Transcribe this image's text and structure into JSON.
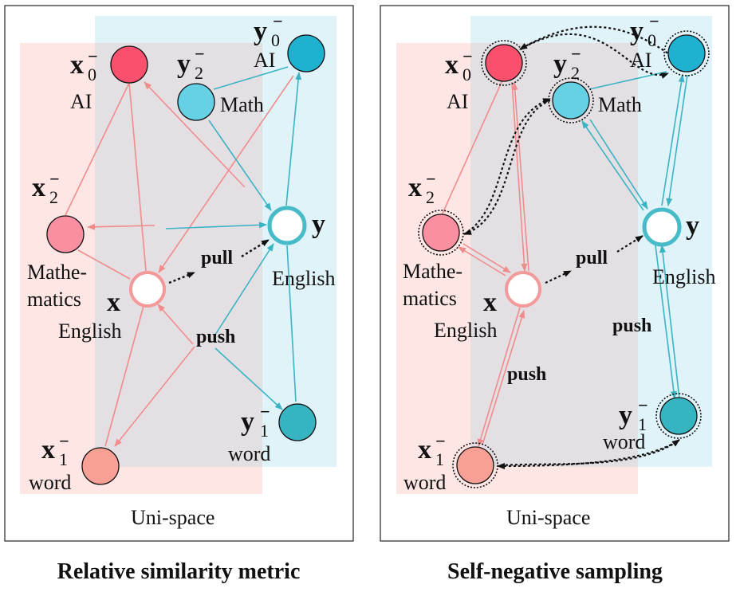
{
  "colors": {
    "source": "#f08c8c",
    "target": "#3ab4c4",
    "source_region": "#fde6e4",
    "target_region": "#dff3f8",
    "overlap_region": "#e4dfe3",
    "x_fill": "#ffffff",
    "x_stroke": "#f4999a",
    "y_stroke": "#47bcc8",
    "x0_fill": "#f9506e",
    "x1_fill": "#f9a096",
    "x2_fill": "#f98fa0",
    "y0_fill": "#1fb1d0",
    "y1_fill": "#37b4c1",
    "y2_fill": "#66d0e4"
  },
  "panels": [
    {
      "caption": "Relative similarity metric",
      "space_label": "Uni-space",
      "nodes": {
        "x": {
          "symbol": "x",
          "label": "English",
          "icon": "circle"
        },
        "y": {
          "symbol": "y",
          "label": "English",
          "icon": "circle"
        },
        "x0": {
          "symbol": "x",
          "sup": "−",
          "sub": "0",
          "label": "AI",
          "icon": "circle"
        },
        "x1": {
          "symbol": "x",
          "sup": "−",
          "sub": "1",
          "label": "word",
          "icon": "circle"
        },
        "x2": {
          "symbol": "x",
          "sup": "−",
          "sub": "2",
          "label_line1": "Mathe-",
          "label_line2": "matics",
          "icon": "circle"
        },
        "y0": {
          "symbol": "y",
          "sup": "−",
          "sub": "0",
          "label": "AI",
          "icon": "circle"
        },
        "y1": {
          "symbol": "y",
          "sup": "−",
          "sub": "1",
          "label": "word",
          "icon": "circle"
        },
        "y2": {
          "symbol": "y",
          "sup": "−",
          "sub": "2",
          "label": "Math",
          "icon": "circle"
        }
      },
      "pull_label": "pull",
      "push_label": "push"
    },
    {
      "caption": "Self-negative sampling",
      "space_label": "Uni-space",
      "nodes": {
        "x": {
          "symbol": "x",
          "label": "English",
          "icon": "circle"
        },
        "y": {
          "symbol": "y",
          "label": "English",
          "icon": "circle"
        },
        "x0": {
          "symbol": "x",
          "sup": "−",
          "sub": "0",
          "label": "AI",
          "icon": "dotted-ring-circle"
        },
        "x1": {
          "symbol": "x",
          "sup": "−",
          "sub": "1",
          "label": "word",
          "icon": "dotted-ring-circle"
        },
        "x2": {
          "symbol": "x",
          "sup": "−",
          "sub": "2",
          "label_line1": "Mathe-",
          "label_line2": "matics",
          "icon": "dotted-ring-circle"
        },
        "y0": {
          "symbol": "y",
          "sup": "−",
          "sub": "0",
          "label": "AI",
          "icon": "dotted-ring-circle"
        },
        "y1": {
          "symbol": "y",
          "sup": "−",
          "sub": "1",
          "label": "word",
          "icon": "dotted-ring-circle"
        },
        "y2": {
          "symbol": "y",
          "sup": "−",
          "sub": "2",
          "label": "Math",
          "icon": "dotted-ring-circle"
        }
      },
      "pull_label": "pull",
      "push_label": "push",
      "push_label_2": "push"
    }
  ]
}
